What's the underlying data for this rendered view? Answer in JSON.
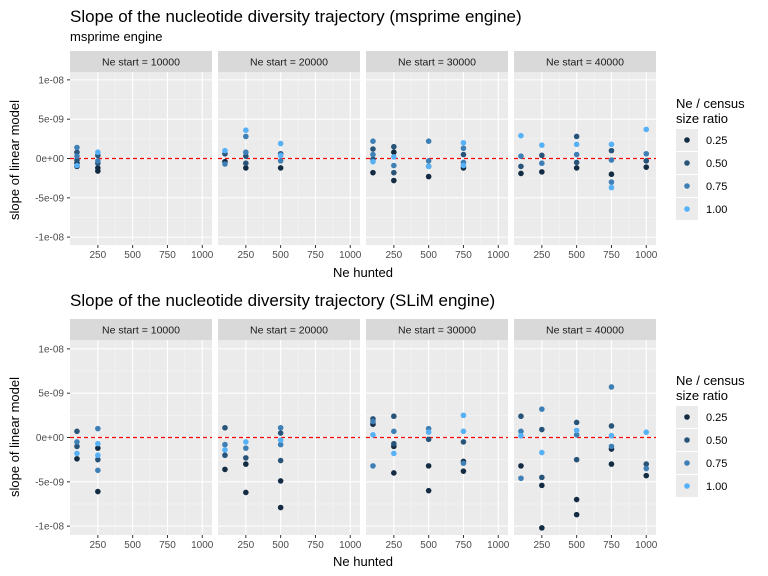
{
  "chart_data": [
    {
      "type": "scatter",
      "title": "Slope of the nucleotide diversity trajectory (msprime engine)",
      "subtitle": "msprime engine",
      "xlabel": "Ne hunted",
      "ylabel": "slope of linear model",
      "facets": [
        "Ne start = 10000",
        "Ne start = 20000",
        "Ne start = 30000",
        "Ne start = 40000"
      ],
      "x_ticks": [
        250,
        500,
        750,
        1000
      ],
      "xlim": [
        50,
        1070
      ],
      "y_ticks": [
        -1e-08,
        -5e-09,
        0,
        5e-09,
        1e-08
      ],
      "y_tick_labels": [
        "-1e-08",
        "-5e-09",
        "0e+00",
        "5e-09",
        "1e-08"
      ],
      "ylim": [
        -1.1e-08,
        1.1e-08
      ],
      "reference_line": {
        "y": 0,
        "color": "#ff0000",
        "style": "dashed"
      },
      "legend": {
        "title": [
          "Ne / census",
          "size ratio"
        ],
        "position": "right",
        "entries": [
          {
            "label": "0.25",
            "color": "#132b43"
          },
          {
            "label": "0.50",
            "color": "#28547a"
          },
          {
            "label": "0.75",
            "color": "#3e7fb5"
          },
          {
            "label": "1.00",
            "color": "#56b1f7"
          }
        ]
      },
      "series": [
        {
          "name": "0.25",
          "color": "#132b43",
          "points": [
            [
              0,
              100,
              -6e-10
            ],
            [
              0,
              100,
              -1e-09
            ],
            [
              0,
              250,
              -1.2e-09
            ],
            [
              0,
              250,
              -1.6e-09
            ],
            [
              1,
              100,
              -4e-10
            ],
            [
              1,
              250,
              -1.2e-09
            ],
            [
              1,
              500,
              -1.2e-09
            ],
            [
              2,
              100,
              -1.8e-09
            ],
            [
              2,
              250,
              -2.8e-09
            ],
            [
              2,
              250,
              8e-10
            ],
            [
              2,
              500,
              -2.3e-09
            ],
            [
              2,
              750,
              -1.2e-09
            ],
            [
              3,
              100,
              -1.9e-09
            ],
            [
              3,
              250,
              -1.7e-09
            ],
            [
              3,
              500,
              -1.2e-09
            ],
            [
              3,
              750,
              -2e-09
            ],
            [
              3,
              1000,
              -1.1e-09
            ]
          ]
        },
        {
          "name": "0.50",
          "color": "#28547a",
          "points": [
            [
              0,
              100,
              8e-10
            ],
            [
              0,
              100,
              -2e-10
            ],
            [
              0,
              250,
              4e-10
            ],
            [
              0,
              250,
              -6e-10
            ],
            [
              1,
              100,
              6e-10
            ],
            [
              1,
              250,
              3e-10
            ],
            [
              1,
              250,
              -6e-10
            ],
            [
              1,
              500,
              6e-10
            ],
            [
              2,
              100,
              1.2e-09
            ],
            [
              2,
              100,
              -1e-10
            ],
            [
              2,
              250,
              1.5e-09
            ],
            [
              2,
              250,
              -1.8e-09
            ],
            [
              2,
              500,
              -1e-09
            ],
            [
              2,
              750,
              5e-10
            ],
            [
              3,
              100,
              -1e-09
            ],
            [
              3,
              250,
              4e-10
            ],
            [
              3,
              500,
              2.8e-09
            ],
            [
              3,
              500,
              -5e-10
            ],
            [
              3,
              750,
              1e-09
            ],
            [
              3,
              1000,
              -3e-10
            ]
          ]
        },
        {
          "name": "0.75",
          "color": "#3e7fb5",
          "points": [
            [
              0,
              100,
              1.4e-09
            ],
            [
              0,
              100,
              3e-10
            ],
            [
              0,
              250,
              -3e-10
            ],
            [
              1,
              100,
              -7e-10
            ],
            [
              1,
              250,
              2.8e-09
            ],
            [
              1,
              250,
              8e-10
            ],
            [
              1,
              500,
              -3e-10
            ],
            [
              2,
              100,
              2.2e-09
            ],
            [
              2,
              100,
              5e-10
            ],
            [
              2,
              250,
              -9e-10
            ],
            [
              2,
              500,
              2.2e-09
            ],
            [
              2,
              500,
              -3e-10
            ],
            [
              2,
              750,
              1.3e-09
            ],
            [
              2,
              750,
              -5e-10
            ],
            [
              3,
              100,
              3e-10
            ],
            [
              3,
              250,
              -6e-10
            ],
            [
              3,
              500,
              5e-10
            ],
            [
              3,
              750,
              -3e-09
            ],
            [
              3,
              750,
              -2e-10
            ],
            [
              3,
              1000,
              6e-10
            ]
          ]
        },
        {
          "name": "1.00",
          "color": "#56b1f7",
          "points": [
            [
              0,
              100,
              -9e-10
            ],
            [
              0,
              250,
              8e-10
            ],
            [
              1,
              100,
              1e-09
            ],
            [
              1,
              250,
              3.6e-09
            ],
            [
              1,
              500,
              1.9e-09
            ],
            [
              1,
              500,
              4e-10
            ],
            [
              2,
              100,
              -4e-10
            ],
            [
              2,
              250,
              2e-10
            ],
            [
              2,
              500,
              -1e-09
            ],
            [
              2,
              750,
              2e-09
            ],
            [
              2,
              750,
              -9e-10
            ],
            [
              3,
              100,
              2.9e-09
            ],
            [
              3,
              250,
              1.7e-09
            ],
            [
              3,
              500,
              1.8e-09
            ],
            [
              3,
              750,
              -3.7e-09
            ],
            [
              3,
              750,
              1.8e-09
            ],
            [
              3,
              1000,
              3.7e-09
            ]
          ]
        }
      ]
    },
    {
      "type": "scatter",
      "title": "Slope of the nucleotide diversity trajectory (SLiM engine)",
      "xlabel": "Ne hunted",
      "ylabel": "slope of linear model",
      "facets": [
        "Ne start = 10000",
        "Ne start = 20000",
        "Ne start = 30000",
        "Ne start = 40000"
      ],
      "x_ticks": [
        250,
        500,
        750,
        1000
      ],
      "xlim": [
        50,
        1070
      ],
      "y_ticks": [
        -1e-08,
        -5e-09,
        0,
        5e-09,
        1e-08
      ],
      "y_tick_labels": [
        "-1e-08",
        "-5e-09",
        "0e+00",
        "5e-09",
        "1e-08"
      ],
      "ylim": [
        -1.1e-08,
        1.1e-08
      ],
      "reference_line": {
        "y": 0,
        "color": "#ff0000",
        "style": "dashed"
      },
      "legend": {
        "title": [
          "Ne / census",
          "size ratio"
        ],
        "position": "right",
        "entries": [
          {
            "label": "0.25",
            "color": "#132b43"
          },
          {
            "label": "0.50",
            "color": "#28547a"
          },
          {
            "label": "0.75",
            "color": "#3e7fb5"
          },
          {
            "label": "1.00",
            "color": "#56b1f7"
          }
        ]
      },
      "series": [
        {
          "name": "0.25",
          "color": "#132b43",
          "points": [
            [
              0,
              100,
              -2.4e-09
            ],
            [
              0,
              250,
              -6.1e-09
            ],
            [
              0,
              250,
              -1.2e-09
            ],
            [
              1,
              100,
              -3.6e-09
            ],
            [
              1,
              250,
              -6.2e-09
            ],
            [
              1,
              250,
              -3e-09
            ],
            [
              1,
              500,
              -7.9e-09
            ],
            [
              1,
              500,
              -4.9e-09
            ],
            [
              2,
              100,
              1.5e-09
            ],
            [
              2,
              250,
              -4e-09
            ],
            [
              2,
              250,
              -1e-09
            ],
            [
              2,
              500,
              -6e-09
            ],
            [
              2,
              500,
              -3.2e-09
            ],
            [
              2,
              750,
              -3.8e-09
            ],
            [
              2,
              750,
              -2.7e-09
            ],
            [
              3,
              100,
              -3.2e-09
            ],
            [
              3,
              250,
              -1.02e-08
            ],
            [
              3,
              250,
              -5.4e-09
            ],
            [
              3,
              500,
              -8.7e-09
            ],
            [
              3,
              500,
              -7e-09
            ],
            [
              3,
              750,
              -3e-09
            ],
            [
              3,
              750,
              -1.3e-09
            ],
            [
              3,
              1000,
              -4.3e-09
            ]
          ]
        },
        {
          "name": "0.50",
          "color": "#28547a",
          "points": [
            [
              0,
              100,
              7e-10
            ],
            [
              0,
              100,
              -1e-09
            ],
            [
              0,
              250,
              -2.5e-09
            ],
            [
              1,
              100,
              1.1e-09
            ],
            [
              1,
              100,
              -2e-09
            ],
            [
              1,
              250,
              -2.3e-09
            ],
            [
              1,
              500,
              -2.6e-09
            ],
            [
              1,
              500,
              5e-10
            ],
            [
              2,
              100,
              2.1e-09
            ],
            [
              2,
              250,
              2.4e-09
            ],
            [
              2,
              250,
              -7e-10
            ],
            [
              2,
              500,
              -2e-10
            ],
            [
              2,
              750,
              -5e-10
            ],
            [
              3,
              100,
              2.4e-09
            ],
            [
              3,
              250,
              9e-10
            ],
            [
              3,
              250,
              -4.5e-09
            ],
            [
              3,
              500,
              1.7e-09
            ],
            [
              3,
              500,
              -2.5e-09
            ],
            [
              3,
              750,
              1.3e-09
            ],
            [
              3,
              1000,
              -3e-09
            ]
          ]
        },
        {
          "name": "0.75",
          "color": "#3e7fb5",
          "points": [
            [
              0,
              100,
              -5e-10
            ],
            [
              0,
              250,
              1e-09
            ],
            [
              0,
              250,
              -3.7e-09
            ],
            [
              1,
              100,
              -8e-10
            ],
            [
              1,
              250,
              -1.2e-09
            ],
            [
              1,
              500,
              1.1e-09
            ],
            [
              1,
              500,
              -8e-10
            ],
            [
              2,
              100,
              -3.2e-09
            ],
            [
              2,
              100,
              1.8e-09
            ],
            [
              2,
              250,
              7e-10
            ],
            [
              2,
              500,
              1e-09
            ],
            [
              2,
              750,
              -2.9e-09
            ],
            [
              3,
              100,
              -4.6e-09
            ],
            [
              3,
              100,
              7e-10
            ],
            [
              3,
              250,
              3.2e-09
            ],
            [
              3,
              500,
              3e-10
            ],
            [
              3,
              750,
              5.7e-09
            ],
            [
              3,
              750,
              -1e-09
            ],
            [
              3,
              1000,
              -3.5e-09
            ]
          ]
        },
        {
          "name": "1.00",
          "color": "#56b1f7",
          "points": [
            [
              0,
              100,
              -1.8e-09
            ],
            [
              0,
              250,
              -2e-09
            ],
            [
              0,
              250,
              -7e-10
            ],
            [
              1,
              100,
              -1.4e-09
            ],
            [
              1,
              250,
              -5e-10
            ],
            [
              1,
              500,
              -3e-10
            ],
            [
              2,
              100,
              3e-10
            ],
            [
              2,
              250,
              -1.8e-09
            ],
            [
              2,
              500,
              6e-10
            ],
            [
              2,
              750,
              2.5e-09
            ],
            [
              2,
              750,
              7e-10
            ],
            [
              3,
              100,
              2e-10
            ],
            [
              3,
              250,
              -1.7e-09
            ],
            [
              3,
              500,
              8e-10
            ],
            [
              3,
              750,
              2e-10
            ],
            [
              3,
              1000,
              6e-10
            ]
          ]
        }
      ]
    }
  ]
}
